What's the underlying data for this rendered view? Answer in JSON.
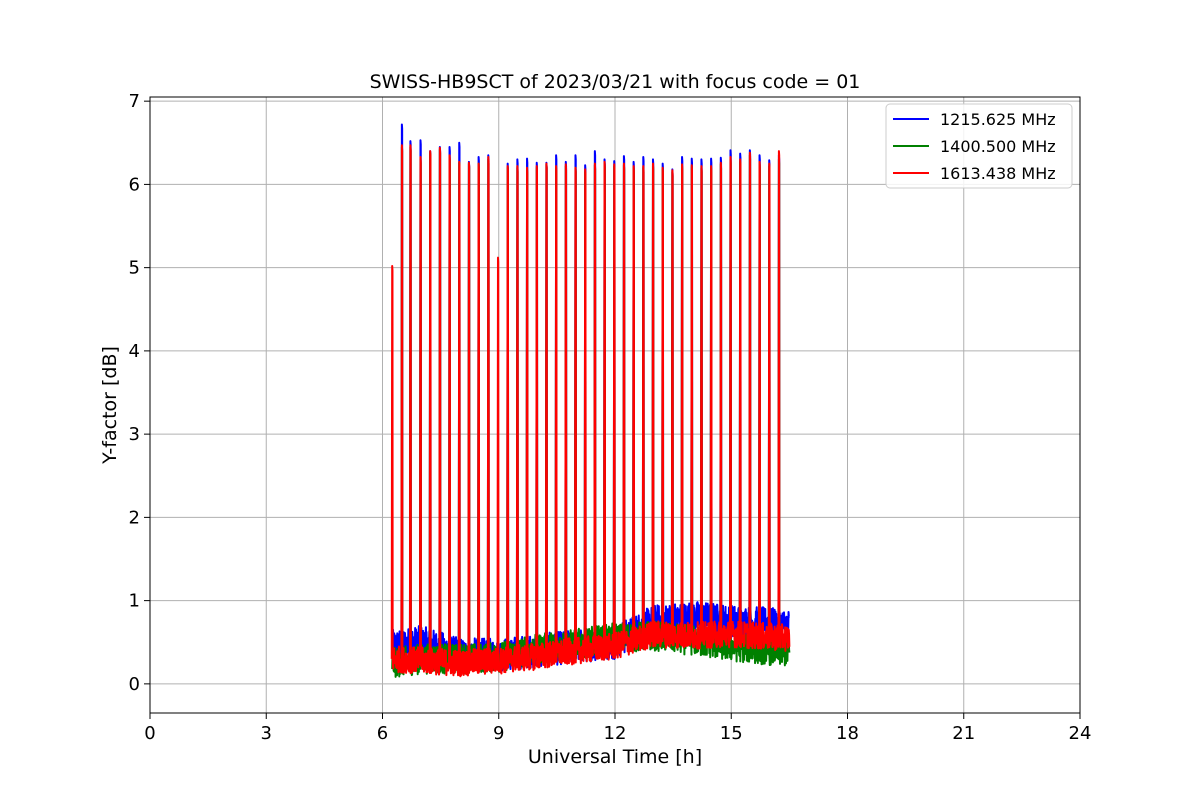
{
  "chart_data": {
    "type": "line",
    "title": "SWISS-HB9SCT of 2023/03/21 with focus code = 01",
    "xlabel": "Universal Time [h]",
    "ylabel": "Y-factor [dB]",
    "xlim": [
      0,
      24
    ],
    "ylim": [
      -0.35,
      7.05
    ],
    "xticks": [
      0,
      3,
      6,
      9,
      12,
      15,
      18,
      21,
      24
    ],
    "yticks": [
      0,
      1,
      2,
      3,
      4,
      5,
      6,
      7
    ],
    "grid": true,
    "legend_position": "top-right",
    "data_start_time": 6.25,
    "data_end_time": 16.5,
    "series": [
      {
        "name": "1215.625 MHz",
        "color": "#0000ff",
        "baseline": [
          [
            6.25,
            0.45
          ],
          [
            7.0,
            0.5
          ],
          [
            8.0,
            0.35
          ],
          [
            9.0,
            0.35
          ],
          [
            10.0,
            0.4
          ],
          [
            11.0,
            0.45
          ],
          [
            12.0,
            0.5
          ],
          [
            13.0,
            0.75
          ],
          [
            14.0,
            0.8
          ],
          [
            15.0,
            0.75
          ],
          [
            16.5,
            0.7
          ]
        ],
        "noise": 0.2,
        "spikes": [
          [
            6.5,
            6.72
          ],
          [
            6.72,
            6.52
          ],
          [
            6.98,
            6.53
          ],
          [
            7.23,
            6.4
          ],
          [
            7.48,
            6.45
          ],
          [
            7.73,
            6.45
          ],
          [
            7.98,
            6.5
          ],
          [
            8.23,
            6.27
          ],
          [
            8.48,
            6.33
          ],
          [
            8.73,
            6.35
          ],
          [
            9.23,
            6.25
          ],
          [
            9.48,
            6.3
          ],
          [
            9.73,
            6.31
          ],
          [
            9.98,
            6.26
          ],
          [
            10.23,
            6.26
          ],
          [
            10.48,
            6.35
          ],
          [
            10.73,
            6.27
          ],
          [
            10.98,
            6.35
          ],
          [
            11.23,
            6.23
          ],
          [
            11.48,
            6.4
          ],
          [
            11.73,
            6.3
          ],
          [
            11.98,
            6.28
          ],
          [
            12.23,
            6.34
          ],
          [
            12.48,
            6.27
          ],
          [
            12.73,
            6.33
          ],
          [
            12.98,
            6.3
          ],
          [
            13.23,
            6.25
          ],
          [
            13.48,
            6.18
          ],
          [
            13.73,
            6.33
          ],
          [
            13.98,
            6.31
          ],
          [
            14.23,
            6.3
          ],
          [
            14.48,
            6.31
          ],
          [
            14.73,
            6.32
          ],
          [
            14.98,
            6.41
          ],
          [
            15.23,
            6.37
          ],
          [
            15.48,
            6.41
          ],
          [
            15.73,
            6.35
          ],
          [
            15.98,
            6.29
          ],
          [
            16.23,
            6.35
          ]
        ]
      },
      {
        "name": "1400.500 MHz",
        "color": "#008000",
        "baseline": [
          [
            6.25,
            0.25
          ],
          [
            7.0,
            0.3
          ],
          [
            8.0,
            0.3
          ],
          [
            9.0,
            0.32
          ],
          [
            10.0,
            0.42
          ],
          [
            11.0,
            0.48
          ],
          [
            12.0,
            0.55
          ],
          [
            13.0,
            0.58
          ],
          [
            14.0,
            0.52
          ],
          [
            15.0,
            0.45
          ],
          [
            16.5,
            0.38
          ]
        ],
        "noise": 0.18,
        "spikes": [
          [
            6.5,
            6.45
          ],
          [
            6.72,
            6.45
          ],
          [
            6.98,
            6.3
          ],
          [
            7.23,
            6.38
          ],
          [
            7.48,
            6.42
          ],
          [
            7.73,
            6.33
          ],
          [
            7.98,
            6.26
          ],
          [
            8.23,
            6.25
          ],
          [
            8.48,
            6.25
          ],
          [
            8.73,
            6.3
          ],
          [
            9.23,
            6.2
          ],
          [
            9.48,
            6.2
          ],
          [
            9.73,
            6.18
          ],
          [
            9.98,
            6.2
          ],
          [
            10.23,
            6.24
          ],
          [
            10.48,
            6.2
          ],
          [
            10.73,
            6.22
          ],
          [
            10.98,
            6.2
          ],
          [
            11.23,
            6.15
          ],
          [
            11.48,
            6.23
          ],
          [
            11.73,
            6.25
          ],
          [
            11.98,
            6.22
          ],
          [
            12.23,
            6.23
          ],
          [
            12.48,
            6.2
          ],
          [
            12.73,
            6.2
          ],
          [
            12.98,
            6.23
          ],
          [
            13.23,
            6.18
          ],
          [
            13.48,
            6.15
          ],
          [
            13.73,
            6.22
          ],
          [
            13.98,
            6.21
          ],
          [
            14.23,
            6.2
          ],
          [
            14.48,
            6.2
          ],
          [
            14.73,
            6.24
          ],
          [
            14.98,
            6.3
          ],
          [
            15.23,
            6.27
          ],
          [
            15.48,
            6.35
          ],
          [
            15.73,
            6.25
          ],
          [
            15.98,
            6.22
          ],
          [
            16.23,
            6.3
          ]
        ]
      },
      {
        "name": "1613.438 MHz",
        "color": "#ff0000",
        "baseline": [
          [
            6.25,
            0.3
          ],
          [
            7.0,
            0.28
          ],
          [
            8.0,
            0.25
          ],
          [
            9.0,
            0.28
          ],
          [
            10.0,
            0.33
          ],
          [
            11.0,
            0.4
          ],
          [
            12.0,
            0.45
          ],
          [
            13.0,
            0.6
          ],
          [
            14.0,
            0.58
          ],
          [
            15.0,
            0.6
          ],
          [
            16.5,
            0.55
          ]
        ],
        "noise": 0.16,
        "spikes": [
          [
            6.25,
            5.02
          ],
          [
            6.5,
            6.47
          ],
          [
            6.72,
            6.47
          ],
          [
            6.98,
            6.33
          ],
          [
            7.23,
            6.4
          ],
          [
            7.48,
            6.44
          ],
          [
            7.73,
            6.35
          ],
          [
            7.98,
            6.27
          ],
          [
            8.23,
            6.26
          ],
          [
            8.48,
            6.25
          ],
          [
            8.73,
            6.33
          ],
          [
            8.98,
            5.12
          ],
          [
            9.23,
            6.22
          ],
          [
            9.48,
            6.22
          ],
          [
            9.73,
            6.2
          ],
          [
            9.98,
            6.22
          ],
          [
            10.23,
            6.25
          ],
          [
            10.48,
            6.22
          ],
          [
            10.73,
            6.24
          ],
          [
            10.98,
            6.2
          ],
          [
            11.23,
            6.18
          ],
          [
            11.48,
            6.25
          ],
          [
            11.73,
            6.27
          ],
          [
            11.98,
            6.24
          ],
          [
            12.23,
            6.25
          ],
          [
            12.48,
            6.22
          ],
          [
            12.73,
            6.22
          ],
          [
            12.98,
            6.25
          ],
          [
            13.23,
            6.2
          ],
          [
            13.48,
            6.17
          ],
          [
            13.73,
            6.24
          ],
          [
            13.98,
            6.23
          ],
          [
            14.23,
            6.22
          ],
          [
            14.48,
            6.22
          ],
          [
            14.73,
            6.26
          ],
          [
            14.98,
            6.33
          ],
          [
            15.23,
            6.3
          ],
          [
            15.48,
            6.38
          ],
          [
            15.73,
            6.27
          ],
          [
            15.98,
            6.25
          ],
          [
            16.23,
            6.4
          ]
        ]
      }
    ]
  }
}
